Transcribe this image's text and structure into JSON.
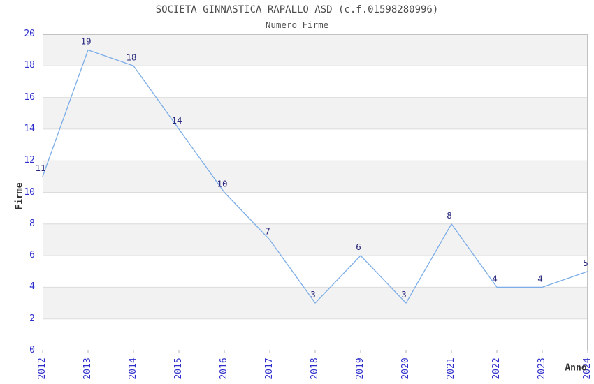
{
  "chart_data": {
    "type": "line",
    "title": "SOCIETA GINNASTICA RAPALLO ASD (c.f.01598280996)",
    "subtitle": "Numero Firme",
    "xlabel": "Anno",
    "ylabel": "Firme",
    "categories": [
      "2012",
      "2013",
      "2014",
      "2015",
      "2016",
      "2017",
      "2018",
      "2019",
      "2020",
      "2021",
      "2022",
      "2023",
      "2024"
    ],
    "values": [
      11,
      19,
      18,
      14,
      10,
      7,
      3,
      6,
      3,
      8,
      4,
      4,
      5
    ],
    "data_labels_visible": true,
    "ylim": [
      0,
      20
    ],
    "ytick_step": 2,
    "grid": true,
    "legend_position": "none",
    "band_shading": "alternating horizontal bands every 2 units",
    "colors": {
      "line": "#7cade8",
      "data_label": "#28287d",
      "tick_label": "#2e2ecc",
      "title": "#4d4d4d",
      "axis_label": "#303030",
      "band": "#f2f2f2",
      "gridline": "#dcdcdc",
      "border": "#c2c2c2",
      "tick_mark": "#b0b0b0"
    }
  }
}
